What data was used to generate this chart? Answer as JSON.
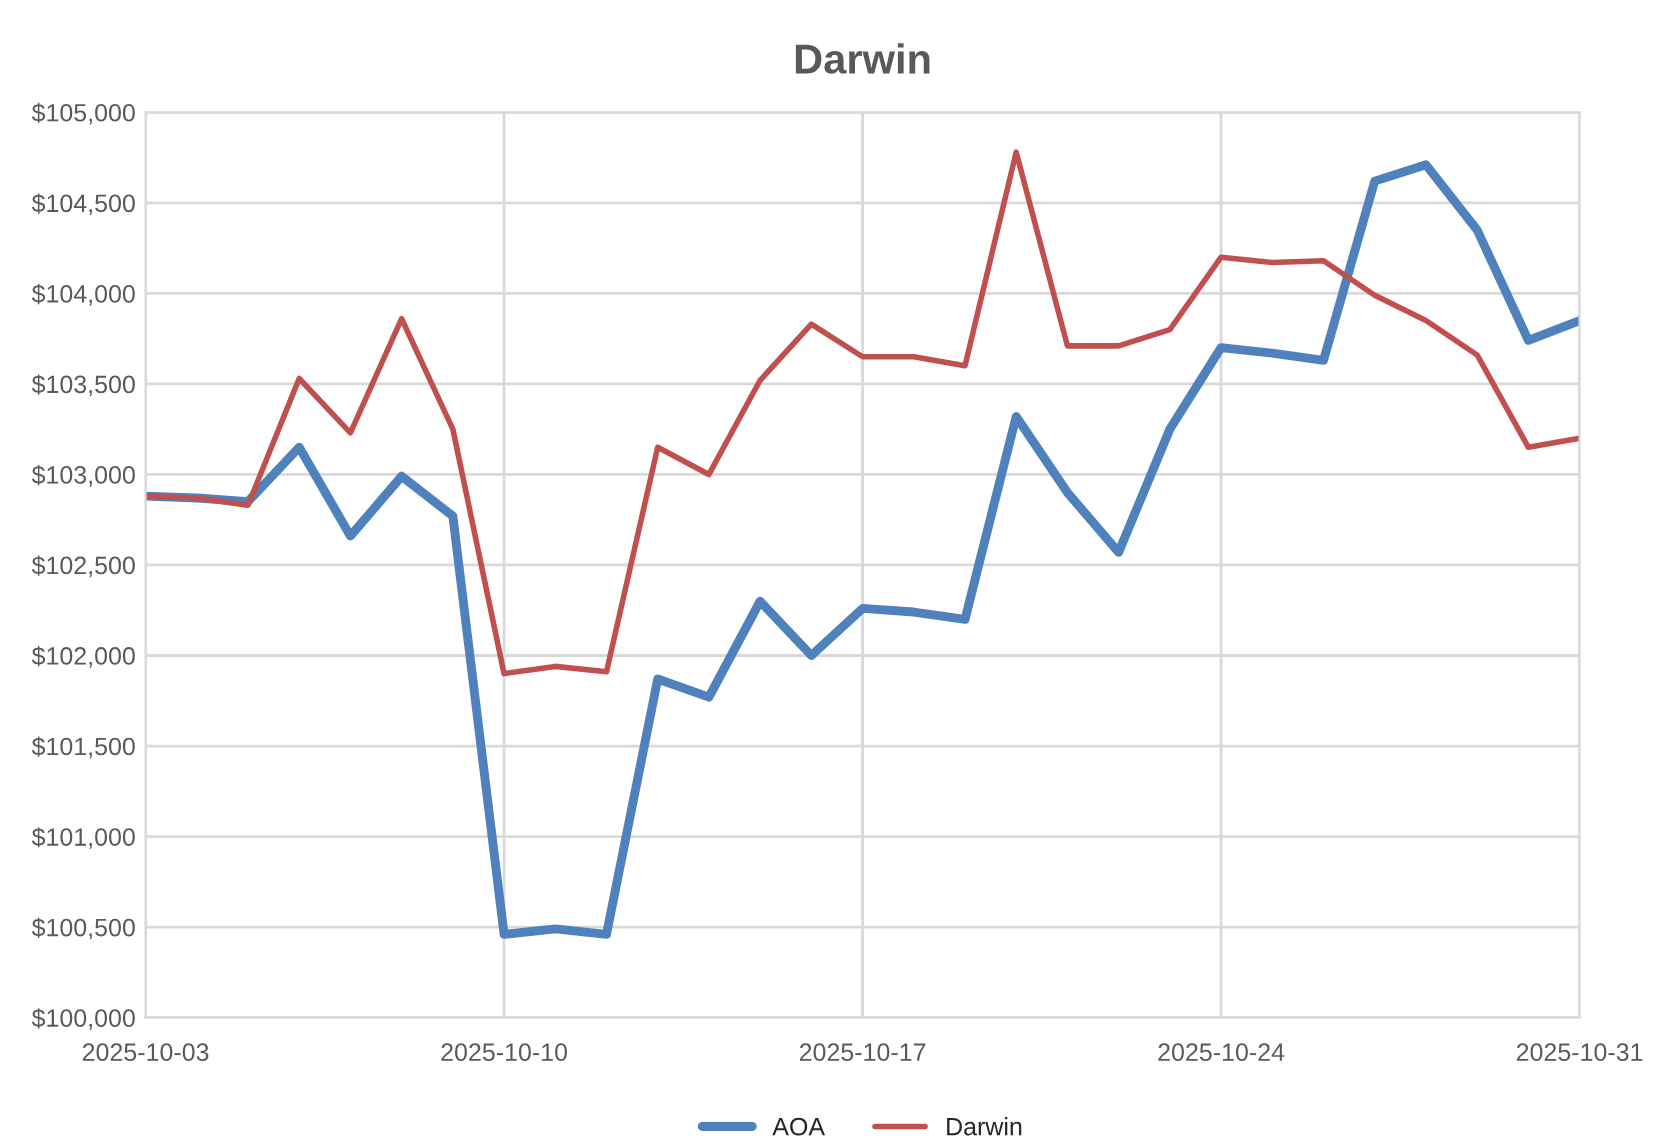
{
  "chart_data": {
    "type": "line",
    "title": "Darwin",
    "x": [
      "2025-10-03",
      "2025-10-04",
      "2025-10-05",
      "2025-10-06",
      "2025-10-07",
      "2025-10-08",
      "2025-10-09",
      "2025-10-10",
      "2025-10-11",
      "2025-10-12",
      "2025-10-13",
      "2025-10-14",
      "2025-10-15",
      "2025-10-16",
      "2025-10-17",
      "2025-10-18",
      "2025-10-19",
      "2025-10-20",
      "2025-10-21",
      "2025-10-22",
      "2025-10-23",
      "2025-10-24",
      "2025-10-25",
      "2025-10-26",
      "2025-10-27",
      "2025-10-28",
      "2025-10-29",
      "2025-10-30",
      "2025-10-31"
    ],
    "series": [
      {
        "name": "AOA",
        "color": "#4f81bd",
        "values": [
          102880,
          102870,
          102850,
          103150,
          102660,
          102990,
          102770,
          100460,
          100490,
          100460,
          101870,
          101770,
          102300,
          102000,
          102260,
          102240,
          102200,
          103320,
          102900,
          102570,
          103250,
          103700,
          103670,
          103630,
          104620,
          104710,
          104350,
          103740,
          103850
        ]
      },
      {
        "name": "Darwin",
        "color": "#c0504d",
        "values": [
          102880,
          102870,
          102830,
          103530,
          103230,
          103860,
          103250,
          101900,
          101940,
          101910,
          103150,
          103000,
          103520,
          103830,
          103650,
          103650,
          103600,
          104780,
          103710,
          103710,
          103800,
          104200,
          104170,
          104180,
          103990,
          103850,
          103660,
          103150,
          103200
        ]
      }
    ],
    "xlim": [
      "2025-10-03",
      "2025-10-31"
    ],
    "xticks": [
      "2025-10-03",
      "2025-10-10",
      "2025-10-17",
      "2025-10-24",
      "2025-10-31"
    ],
    "ylim": [
      100000,
      105000
    ],
    "yticks": [
      {
        "value": 100000,
        "label": "$100,000"
      },
      {
        "value": 100500,
        "label": "$100,500"
      },
      {
        "value": 101000,
        "label": "$101,000"
      },
      {
        "value": 101500,
        "label": "$101,500"
      },
      {
        "value": 102000,
        "label": "$102,000"
      },
      {
        "value": 102500,
        "label": "$102,500"
      },
      {
        "value": 103000,
        "label": "$103,000"
      },
      {
        "value": 103500,
        "label": "$103,500"
      },
      {
        "value": 104000,
        "label": "$104,000"
      },
      {
        "value": 104500,
        "label": "$104,500"
      },
      {
        "value": 105000,
        "label": "$105,000"
      }
    ],
    "grid": true,
    "legend": "bottom",
    "marker": "none",
    "line_style": "solid"
  }
}
